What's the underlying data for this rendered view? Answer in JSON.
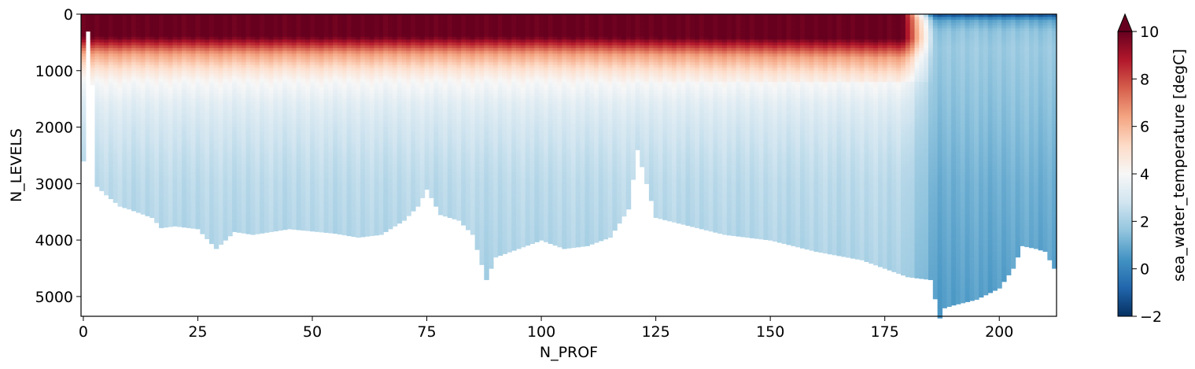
{
  "chart_data": {
    "type": "heatmap",
    "xlabel": "N_PROF",
    "ylabel": "N_LEVELS",
    "xlim": [
      -0.5,
      212.5
    ],
    "ylim": [
      5350,
      0
    ],
    "x_ticks": [
      0,
      25,
      50,
      75,
      100,
      125,
      150,
      175,
      200
    ],
    "y_ticks": [
      0,
      1000,
      2000,
      3000,
      4000,
      5000
    ],
    "colorbar": {
      "label": "sea_water_temperature [degC]",
      "vmin": -2,
      "vmax": 10,
      "ticks": [
        -2,
        0,
        2,
        4,
        6,
        8,
        10
      ],
      "extend": "max",
      "colormap": "RdBu_r"
    },
    "profile_max_depth_anchors": {
      "profile": [
        0,
        0.7,
        1,
        2,
        3,
        5,
        8,
        10,
        15,
        17,
        20,
        25,
        29,
        33,
        37,
        45,
        55,
        60,
        65,
        70,
        73,
        75,
        78,
        82,
        85,
        88,
        90,
        95,
        100,
        105,
        110,
        115,
        119,
        121,
        125,
        130,
        140,
        150,
        160,
        170,
        175,
        180,
        185,
        187,
        188,
        190,
        195,
        200,
        203,
        205,
        208,
        210,
        212
      ],
      "max_depth": [
        2600,
        1300,
        300,
        1250,
        3050,
        3200,
        3400,
        3450,
        3600,
        3780,
        3750,
        3800,
        4150,
        3850,
        3900,
        3800,
        3880,
        3950,
        3900,
        3650,
        3400,
        3100,
        3550,
        3650,
        3900,
        4700,
        4300,
        4150,
        4000,
        4150,
        4100,
        3950,
        3450,
        2400,
        3600,
        3700,
        3900,
        4000,
        4200,
        4350,
        4500,
        4650,
        4700,
        5380,
        5200,
        5150,
        5050,
        4850,
        4500,
        4100,
        4150,
        4200,
        4500
      ]
    },
    "temperature_profile": {
      "west_of_180": {
        "depth": [
          0,
          400,
          700,
          1000,
          1200,
          1600,
          2000,
          2500,
          3000,
          3500,
          4000,
          5000
        ],
        "temp": [
          10,
          10,
          6.5,
          4.8,
          4.0,
          3.3,
          2.9,
          2.6,
          2.4,
          2.3,
          2.2,
          2.0
        ]
      },
      "east_of_185": {
        "depth": [
          0,
          100,
          300,
          600,
          1000,
          2000,
          3000,
          4000,
          5000
        ],
        "temp": [
          -1.5,
          0.8,
          1.6,
          1.8,
          1.7,
          1.4,
          1.1,
          0.9,
          0.7
        ]
      }
    }
  }
}
